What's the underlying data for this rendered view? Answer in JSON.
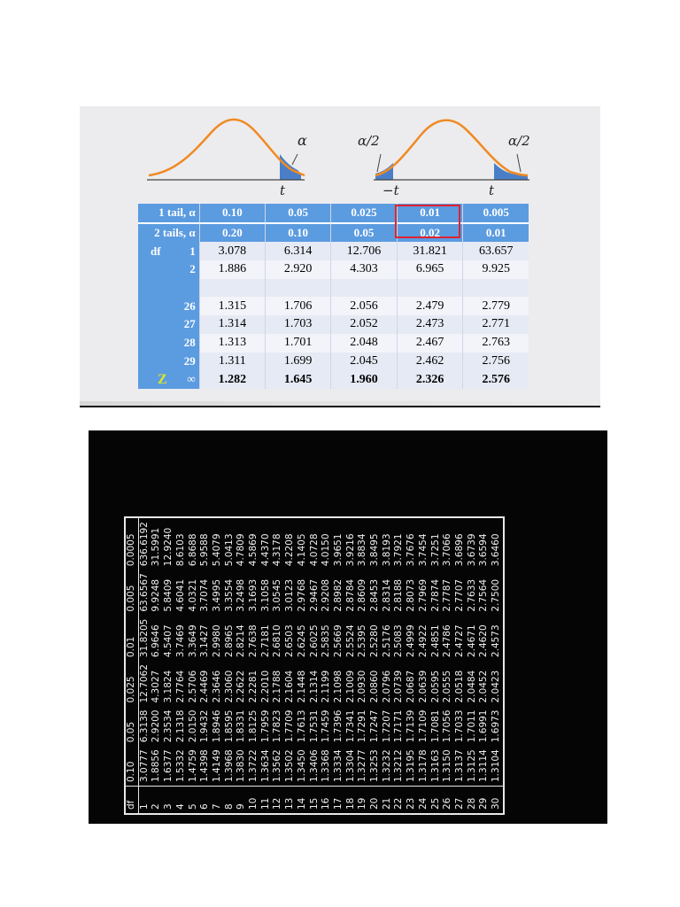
{
  "figure": {
    "labels": {
      "alpha_one": "α",
      "alpha_half_left": "α/2",
      "alpha_half_right": "α/2",
      "t_one": "t",
      "neg_t": "−t",
      "t_two": "t"
    },
    "colors": {
      "curve": "#f08a24",
      "tail_fill": "#4a7fc8",
      "header_blue": "#5b9be0",
      "highlight": "#e0232f"
    }
  },
  "t_table": {
    "row_one_tail": {
      "label": "1 tail, α",
      "values": [
        "0.10",
        "0.05",
        "0.025",
        "0.01",
        "0.005"
      ]
    },
    "row_two_tails": {
      "label": "2 tails, α",
      "values": [
        "0.20",
        "0.10",
        "0.05",
        "0.02",
        "0.01"
      ]
    },
    "rows": [
      {
        "prefix": "df",
        "df": "1",
        "values": [
          "3.078",
          "6.314",
          "12.706",
          "31.821",
          "63.657"
        ]
      },
      {
        "prefix": "",
        "df": "2",
        "values": [
          "1.886",
          "2.920",
          "4.303",
          "6.965",
          "9.925"
        ]
      },
      {
        "prefix": "",
        "df": "",
        "values": [
          "",
          "",
          "",
          "",
          ""
        ]
      },
      {
        "prefix": "",
        "df": "26",
        "values": [
          "1.315",
          "1.706",
          "2.056",
          "2.479",
          "2.779"
        ]
      },
      {
        "prefix": "",
        "df": "27",
        "values": [
          "1.314",
          "1.703",
          "2.052",
          "2.473",
          "2.771"
        ]
      },
      {
        "prefix": "",
        "df": "28",
        "values": [
          "1.313",
          "1.701",
          "2.048",
          "2.467",
          "2.763"
        ]
      },
      {
        "prefix": "",
        "df": "29",
        "values": [
          "1.311",
          "1.699",
          "2.045",
          "2.462",
          "2.756"
        ]
      }
    ],
    "z_row": {
      "symbol": "Z",
      "df": "∞",
      "values": [
        "1.282",
        "1.645",
        "1.960",
        "2.326",
        "2.576"
      ]
    }
  },
  "dark_table": {
    "headers": [
      "df",
      "0.10",
      "0.05",
      "0.025",
      "0.01",
      "0.005",
      "0.0005"
    ],
    "rows": [
      [
        "1",
        "3.0777",
        "6.3138",
        "12.7062",
        "31.8205",
        "63.6567",
        "636.6192"
      ],
      [
        "2",
        "1.8856",
        "2.9200",
        "4.3027",
        "6.9646",
        "9.9248",
        "31.5991"
      ],
      [
        "3",
        "1.6377",
        "2.3534",
        "3.1824",
        "4.5407",
        "5.8409",
        "12.9240"
      ],
      [
        "4",
        "1.5332",
        "2.1318",
        "2.7764",
        "3.7469",
        "4.6041",
        "8.6103"
      ],
      [
        "5",
        "1.4759",
        "2.0150",
        "2.5706",
        "3.3649",
        "4.0321",
        "6.8688"
      ],
      [
        "6",
        "1.4398",
        "1.9432",
        "2.4469",
        "3.1427",
        "3.7074",
        "5.9588"
      ],
      [
        "7",
        "1.4149",
        "1.8946",
        "2.3646",
        "2.9980",
        "3.4995",
        "5.4079"
      ],
      [
        "8",
        "1.3968",
        "1.8595",
        "2.3060",
        "2.8965",
        "3.3554",
        "5.0413"
      ],
      [
        "9",
        "1.3830",
        "1.8331",
        "2.2622",
        "2.8214",
        "3.2498",
        "4.7809"
      ],
      [
        "10",
        "1.3722",
        "1.8125",
        "2.2281",
        "2.7638",
        "3.1693",
        "4.5869"
      ],
      [
        "11",
        "1.3634",
        "1.7959",
        "2.2010",
        "2.7181",
        "3.1058",
        "4.4370"
      ],
      [
        "12",
        "1.3562",
        "1.7823",
        "2.1788",
        "2.6810",
        "3.0545",
        "4.3178"
      ],
      [
        "13",
        "1.3502",
        "1.7709",
        "2.1604",
        "2.6503",
        "3.0123",
        "4.2208"
      ],
      [
        "14",
        "1.3450",
        "1.7613",
        "2.1448",
        "2.6245",
        "2.9768",
        "4.1405"
      ],
      [
        "15",
        "1.3406",
        "1.7531",
        "2.1314",
        "2.6025",
        "2.9467",
        "4.0728"
      ],
      [
        "16",
        "1.3368",
        "1.7459",
        "2.1199",
        "2.5835",
        "2.9208",
        "4.0150"
      ],
      [
        "17",
        "1.3334",
        "1.7396",
        "2.1098",
        "2.5669",
        "2.8982",
        "3.9651"
      ],
      [
        "18",
        "1.3304",
        "1.7341",
        "2.1009",
        "2.5524",
        "2.8784",
        "3.9216"
      ],
      [
        "19",
        "1.3277",
        "1.7291",
        "2.0930",
        "2.5395",
        "2.8609",
        "3.8834"
      ],
      [
        "20",
        "1.3253",
        "1.7247",
        "2.0860",
        "2.5280",
        "2.8453",
        "3.8495"
      ],
      [
        "21",
        "1.3232",
        "1.7207",
        "2.0796",
        "2.5176",
        "2.8314",
        "3.8193"
      ],
      [
        "22",
        "1.3212",
        "1.7171",
        "2.0739",
        "2.5083",
        "2.8188",
        "3.7921"
      ],
      [
        "23",
        "1.3195",
        "1.7139",
        "2.0687",
        "2.4999",
        "2.8073",
        "3.7676"
      ],
      [
        "24",
        "1.3178",
        "1.7109",
        "2.0639",
        "2.4922",
        "2.7969",
        "3.7454"
      ],
      [
        "25",
        "1.3163",
        "1.7081",
        "2.0595",
        "2.4851",
        "2.7874",
        "3.7251"
      ],
      [
        "26",
        "1.3150",
        "1.7056",
        "2.0555",
        "2.4786",
        "2.7787",
        "3.7066"
      ],
      [
        "27",
        "1.3137",
        "1.7033",
        "2.0518",
        "2.4727",
        "2.7707",
        "3.6896"
      ],
      [
        "28",
        "1.3125",
        "1.7011",
        "2.0484",
        "2.4671",
        "2.7633",
        "3.6739"
      ],
      [
        "29",
        "1.3114",
        "1.6991",
        "2.0452",
        "2.4620",
        "2.7564",
        "3.6594"
      ],
      [
        "30",
        "1.3104",
        "1.6973",
        "2.0423",
        "2.4573",
        "2.7500",
        "3.6460"
      ]
    ]
  }
}
